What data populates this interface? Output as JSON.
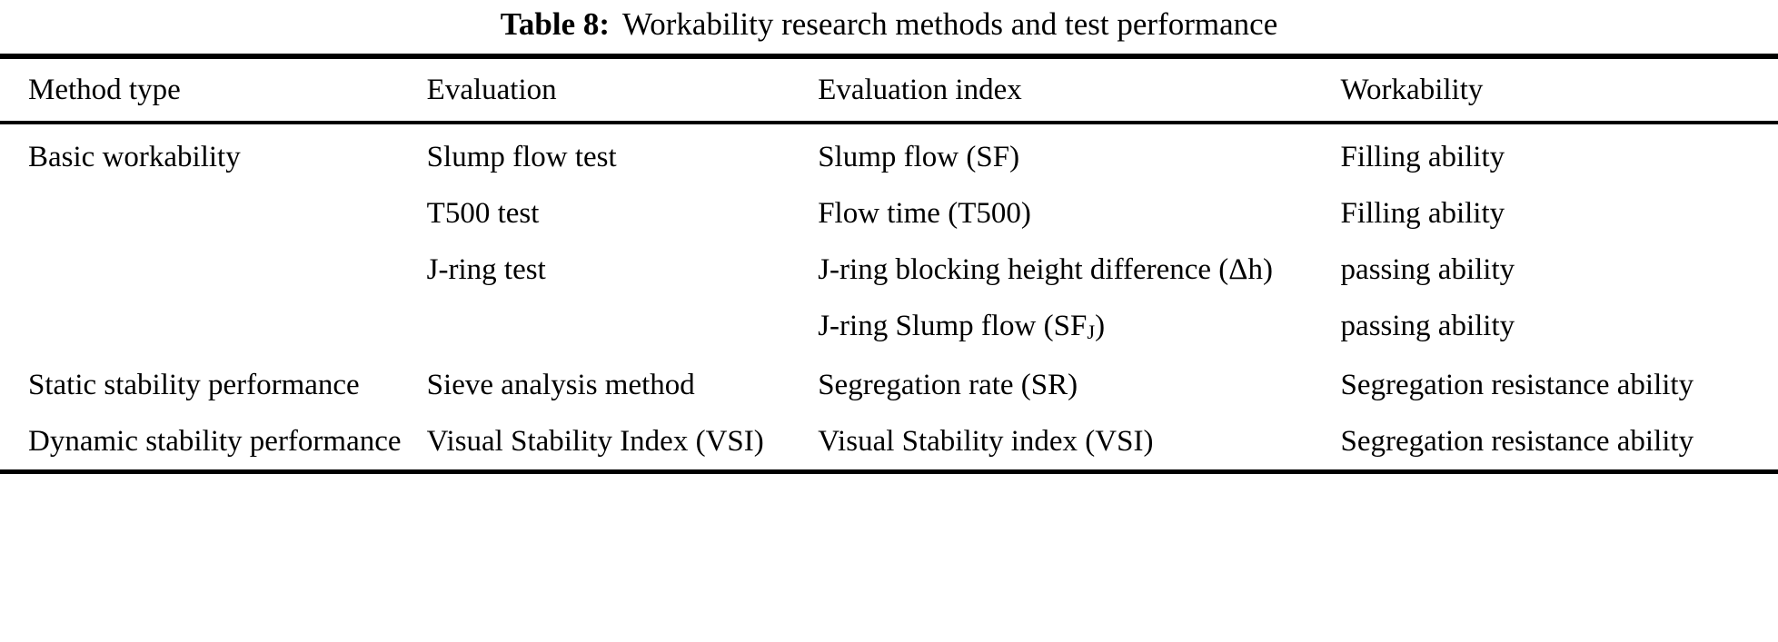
{
  "title": {
    "label": "Table 8:",
    "text": "Workability research methods and test performance"
  },
  "table": {
    "headers": [
      "Method type",
      "Evaluation",
      "Evaluation index",
      "Workability"
    ],
    "rows": [
      {
        "method": "Basic workability",
        "evaluation": "Slump flow test",
        "index": "Slump flow (SF)",
        "workability": "Filling ability"
      },
      {
        "method": "",
        "evaluation": "T500 test",
        "index": "Flow time (T500)",
        "workability": "Filling ability"
      },
      {
        "method": "",
        "evaluation": "J-ring test",
        "index": "J-ring blocking height difference (Δh)",
        "workability": "passing ability"
      },
      {
        "method": "",
        "evaluation": "",
        "index_parts": {
          "pre": "J-ring Slump flow (SF",
          "sub": "J",
          "post": ")"
        },
        "workability": "passing ability"
      },
      {
        "method": "Static stability performance",
        "evaluation": "Sieve analysis method",
        "index": "Segregation rate (SR)",
        "workability": "Segregation resistance ability"
      },
      {
        "method": "Dynamic stability performance",
        "evaluation": "Visual Stability Index (VSI)",
        "index": "Visual Stability index (VSI)",
        "workability": "Segregation resistance ability"
      }
    ]
  }
}
